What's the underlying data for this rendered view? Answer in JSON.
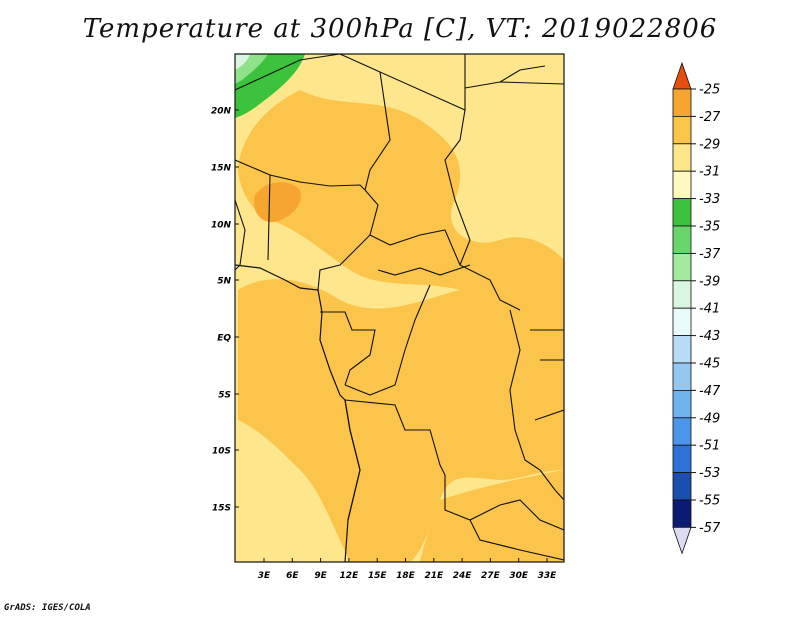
{
  "title": "Temperature at 300hPa [C], VT: 2019022806",
  "credit": "GrADS: IGES/COLA",
  "map": {
    "lat_labels": [
      "20N",
      "15N",
      "10N",
      "5N",
      "EQ",
      "5S",
      "10S",
      "15S"
    ],
    "lon_labels": [
      "3E",
      "6E",
      "9E",
      "12E",
      "15E",
      "18E",
      "21E",
      "24E",
      "27E",
      "30E",
      "33E"
    ],
    "fill_colors": {
      "base_light": "#fde68c",
      "mid": "#fbc44a",
      "warm": "#f7a531",
      "green_dark": "#3cc23c",
      "green_light": "#8fe28a",
      "pale": "#d9f7e0"
    }
  },
  "colorbar": {
    "levels": [
      "-25",
      "-27",
      "-29",
      "-31",
      "-33",
      "-35",
      "-37",
      "-39",
      "-41",
      "-43",
      "-45",
      "-47",
      "-49",
      "-51",
      "-53",
      "-55",
      "-57"
    ],
    "colors": [
      "#e94d0e",
      "#f7a531",
      "#fbc44a",
      "#fde68c",
      "#fff8c0",
      "#3cc23c",
      "#69d66a",
      "#a3ea9d",
      "#d9f7e0",
      "#e9fafb",
      "#b8dcf6",
      "#94c8f2",
      "#6eb2ef",
      "#4b96ea",
      "#2c72d8",
      "#1a4fb0",
      "#0b1b74",
      "#dcdcf4"
    ]
  }
}
